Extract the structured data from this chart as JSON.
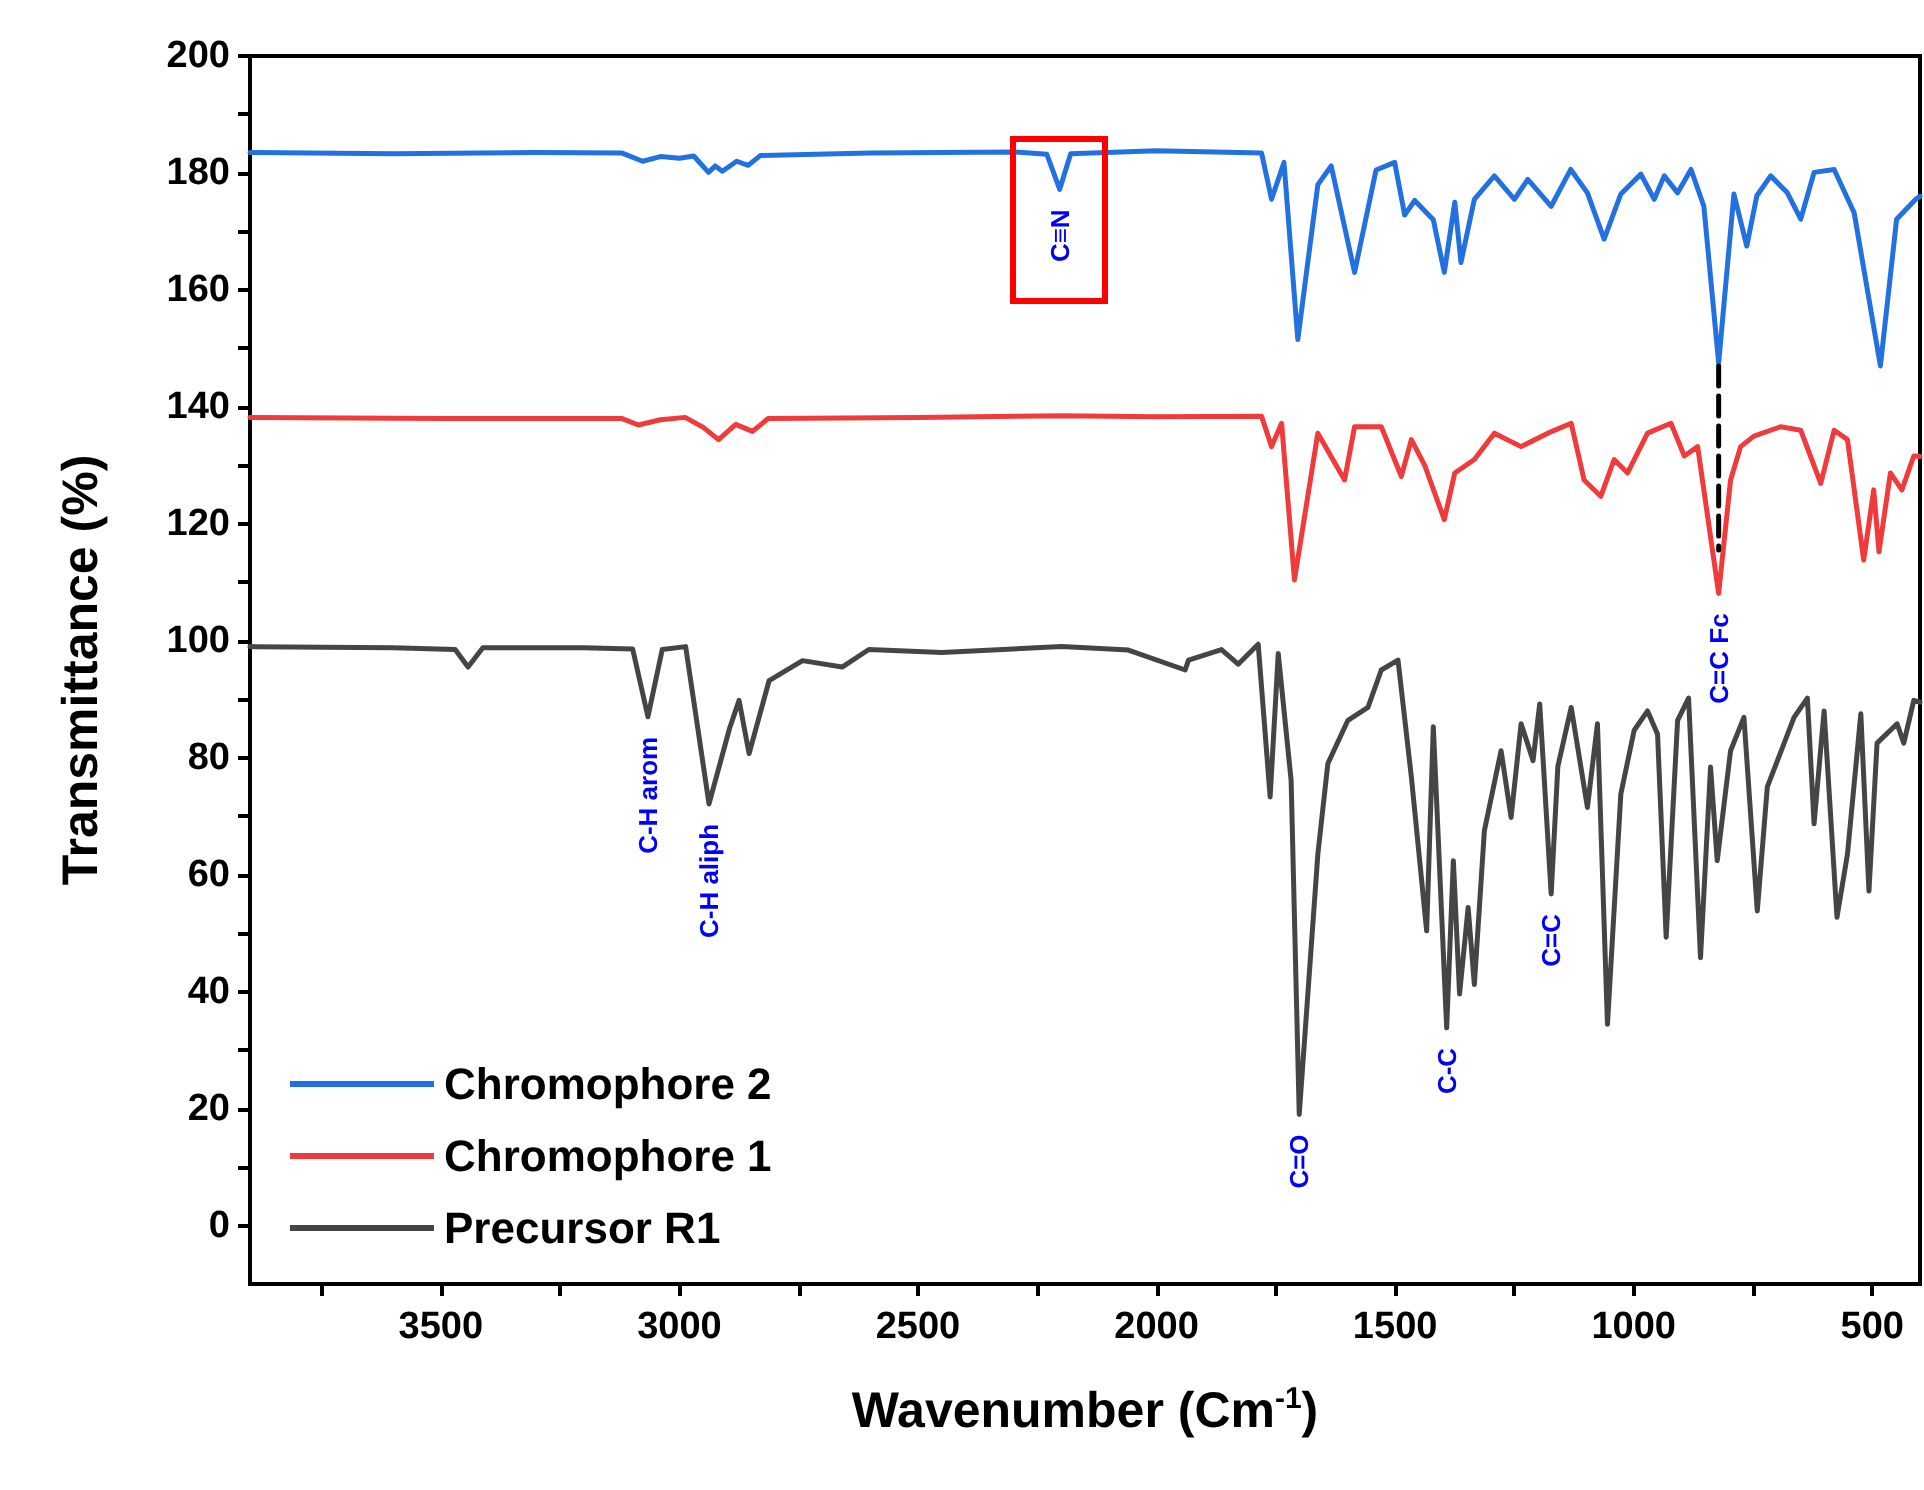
{
  "chart_data": {
    "type": "line",
    "xlabel": "Wavenumber (Cm$^{-1}$)",
    "ylabel": "Transmittance (%)",
    "xlim": [
      3900,
      400
    ],
    "ylim": [
      -10,
      200
    ],
    "xticks": [
      {
        "value": 3750,
        "label": null
      },
      3500,
      {
        "value": 3250,
        "label": null
      },
      3000,
      {
        "value": 2750,
        "label": null
      },
      2500,
      {
        "value": 2250,
        "label": null
      },
      2000,
      {
        "value": 1750,
        "label": null
      },
      1500,
      {
        "value": 1250,
        "label": null
      },
      1000,
      {
        "value": 750,
        "label": null
      },
      500
    ],
    "yticks": [
      0,
      {
        "value": 10,
        "label": null
      },
      20,
      {
        "value": 30,
        "label": null
      },
      40,
      {
        "value": 50,
        "label": null
      },
      60,
      {
        "value": 70,
        "label": null
      },
      80,
      {
        "value": 90,
        "label": null
      },
      100,
      {
        "value": 110,
        "label": null
      },
      120,
      {
        "value": 130,
        "label": null
      },
      140,
      {
        "value": 150,
        "label": null
      },
      160,
      {
        "value": 170,
        "label": null
      },
      180,
      {
        "value": 190,
        "label": null
      },
      200
    ],
    "legend": "bottom left",
    "marker": "none",
    "line_style": "solid",
    "series": [
      {
        "name": "Chromophore 2",
        "color": "#2271e0",
        "x": [
          3900,
          3600,
          3300,
          3120,
          3077,
          3040,
          3000,
          2970,
          2939,
          2925,
          2910,
          2880,
          2856,
          2830,
          2600,
          2300,
          2230,
          2203,
          2180,
          2000,
          1780,
          1759,
          1733,
          1704,
          1662,
          1634,
          1585,
          1540,
          1501,
          1480,
          1459,
          1420,
          1397,
          1375,
          1362,
          1334,
          1292,
          1250,
          1222,
          1173,
          1132,
          1097,
          1062,
          1027,
          985,
          957,
          936,
          908,
          880,
          853,
          822,
          790,
          763,
          742,
          713,
          678,
          650,
          622,
          580,
          538,
          483,
          449,
          409,
          400
        ],
        "values": [
          183.5,
          183.3,
          183.5,
          183.4,
          182,
          182.8,
          182.5,
          182.9,
          180.1,
          181.2,
          180.3,
          182,
          181.3,
          183,
          183.4,
          183.6,
          183.2,
          177.2,
          183.3,
          183.8,
          183.4,
          175.5,
          181.8,
          151.5,
          178,
          181.2,
          163,
          180.5,
          181.8,
          172.8,
          175.3,
          172,
          163,
          175,
          164.7,
          175.5,
          179.5,
          175.5,
          178.9,
          174.3,
          180.6,
          176.6,
          168.7,
          176.4,
          179.8,
          175.5,
          179.5,
          176.6,
          180.6,
          174.3,
          147.5,
          176.4,
          167.5,
          176.1,
          179.5,
          176.6,
          172.1,
          180.1,
          180.6,
          173.2,
          147,
          172.1,
          175.5,
          176
        ]
      },
      {
        "name": "Chromophore 1",
        "color": "#ef3b3b",
        "x": [
          3900,
          3500,
          3120,
          3086,
          3040,
          2988,
          2950,
          2918,
          2882,
          2847,
          2814,
          2500,
          2200,
          2000,
          1780,
          1759,
          1738,
          1711,
          1662,
          1606,
          1585,
          1529,
          1487,
          1466,
          1438,
          1397,
          1375,
          1334,
          1292,
          1236,
          1180,
          1131,
          1104,
          1069,
          1041,
          1013,
          971,
          922,
          894,
          866,
          822,
          797,
          776,
          748,
          692,
          650,
          608,
          580,
          552,
          518,
          497,
          486,
          462,
          438,
          413,
          400
        ],
        "values": [
          138.2,
          138,
          138,
          136.9,
          137.8,
          138.2,
          136.5,
          134.4,
          137,
          135.8,
          138,
          138.2,
          138.5,
          138.3,
          138.4,
          133.2,
          137.2,
          110.4,
          135.5,
          127.5,
          136.6,
          136.6,
          128.1,
          134.4,
          130,
          120.7,
          128.7,
          131,
          135.5,
          133.2,
          135.5,
          137.2,
          127.5,
          124.7,
          131,
          128.7,
          135.5,
          137.2,
          131.6,
          133.2,
          108.1,
          127.5,
          133.2,
          135,
          136.6,
          136,
          126.9,
          136,
          134.4,
          113.8,
          125.8,
          115.2,
          128.7,
          125.8,
          131.6,
          131.5
        ]
      },
      {
        "name": "Precursor R1",
        "color": "#454545",
        "x": [
          3900,
          3600,
          3470,
          3443,
          3412,
          3200,
          3098,
          3066,
          3036,
          2987,
          2966,
          2938,
          2917,
          2895,
          2875,
          2854,
          2812,
          2742,
          2659,
          2603,
          2450,
          2199,
          2059,
          1940,
          1933,
          1864,
          1829,
          1787,
          1762,
          1745,
          1718,
          1701,
          1662,
          1641,
          1599,
          1557,
          1529,
          1494,
          1466,
          1434,
          1420,
          1392,
          1378,
          1365,
          1347,
          1334,
          1313,
          1278,
          1257,
          1236,
          1211,
          1197,
          1173,
          1159,
          1131,
          1097,
          1076,
          1055,
          1027,
          999,
          971,
          950,
          932,
          908,
          885,
          860,
          839,
          825,
          797,
          769,
          741,
          720,
          664,
          636,
          622,
          601,
          574,
          552,
          524,
          507,
          490,
          448,
          434,
          413,
          400
        ],
        "values": [
          99,
          98.8,
          98.5,
          95.5,
          98.8,
          98.8,
          98.6,
          87,
          98.5,
          99,
          87.5,
          72.1,
          78.4,
          85,
          89.8,
          80.7,
          93.2,
          96.6,
          95.5,
          98.5,
          98,
          99,
          98.4,
          95,
          96.7,
          98.5,
          96,
          99.4,
          73.3,
          97.8,
          76.1,
          19,
          63.5,
          79,
          86.4,
          88.6,
          95,
          96.7,
          76.7,
          50.4,
          85.3,
          33.8,
          62.4,
          39.6,
          54.4,
          41.2,
          67.5,
          81.2,
          69.8,
          85.8,
          79.5,
          89.2,
          56.7,
          78.5,
          88.6,
          71.5,
          85.8,
          34.4,
          73.8,
          84.7,
          88,
          84,
          49.3,
          86.4,
          90.2,
          45.8,
          78.4,
          62.4,
          81.2,
          86.9,
          53.8,
          75,
          86.9,
          90.2,
          68.7,
          88,
          52.7,
          63.5,
          87.5,
          57.2,
          82.5,
          85.8,
          82.5,
          89.8,
          89.5
        ]
      },
      {
        "color": "#000000",
        "line_style": "dashed",
        "x": [
          822,
          822
        ],
        "values": [
          147,
          115.5
        ]
      }
    ],
    "annotations": [
      {
        "text": "C≡N",
        "x": 2203,
        "y": 177.2
      },
      {
        "text": "C-H arom",
        "x": 3066,
        "y": 87
      },
      {
        "text": "C-H aliph",
        "x": 2938,
        "y": 72.1
      },
      {
        "text": "C=O",
        "x": 1701,
        "y": 19
      },
      {
        "text": "C-C",
        "x": 1392,
        "y": 33.8
      },
      {
        "text": "C=C",
        "x": 1173,
        "y": 56.7
      },
      {
        "text": "C=C Fc",
        "x": 822,
        "y": 108.1
      }
    ]
  }
}
